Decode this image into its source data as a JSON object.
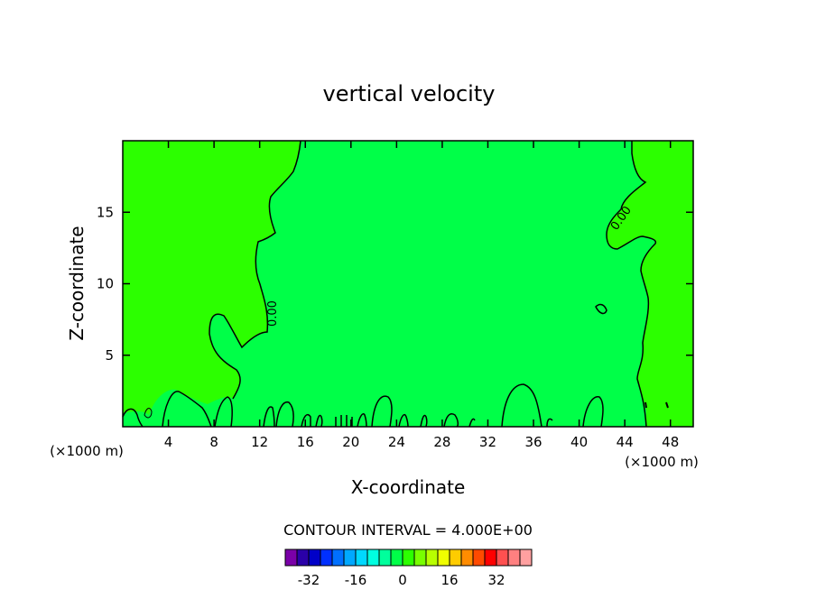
{
  "chart_data": {
    "type": "heatmap",
    "title": "vertical velocity",
    "xlabel": "X-coordinate",
    "ylabel": "Z-coordinate",
    "x_unit_note": "(×1000 m)",
    "y_unit_note": "(×1000 m)",
    "xlim": [
      0,
      50
    ],
    "ylim": [
      0,
      20
    ],
    "x_ticks": [
      4,
      8,
      12,
      16,
      20,
      24,
      28,
      32,
      36,
      40,
      44,
      48
    ],
    "y_ticks": [
      5,
      10,
      15
    ],
    "contour_labels": [
      "0.00",
      "0.00"
    ],
    "contour_interval_text": "CONTOUR INTERVAL = 4.000E+00",
    "colorbar": {
      "colors": [
        "#7a00a8",
        "#2a00a8",
        "#0000c8",
        "#0030ff",
        "#0070ff",
        "#00a8ff",
        "#00d8ff",
        "#00ffe0",
        "#00ff9c",
        "#00ff48",
        "#2cff00",
        "#78ff00",
        "#b8ff00",
        "#f0ff00",
        "#ffcc00",
        "#ff8c00",
        "#ff4a00",
        "#ff0000",
        "#ff5050",
        "#ff8080",
        "#ffa0a0"
      ],
      "tick_labels": [
        "-32",
        "-16",
        "0",
        "16",
        "32"
      ],
      "tick_values": [
        -32,
        -16,
        0,
        16,
        32
      ]
    },
    "field_colors": {
      "near_zero": "#00ff48",
      "slightly_positive": "#2cff00"
    }
  }
}
